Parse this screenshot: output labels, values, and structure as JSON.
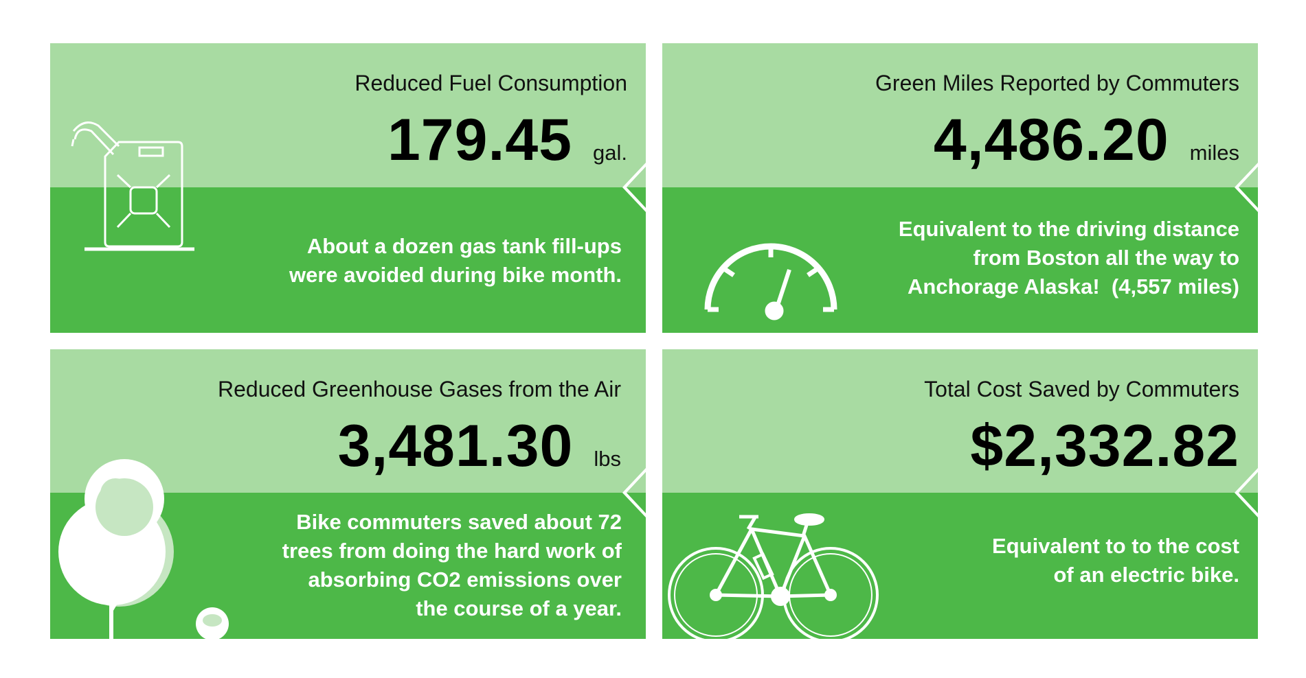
{
  "panels": [
    {
      "title": "Reduced Fuel Consumption",
      "value": "179.45",
      "unit": "gal.",
      "description": [
        "About a dozen gas tank fill-ups",
        "were avoided during bike month."
      ]
    },
    {
      "title": "Green Miles Reported by Commuters",
      "value": "4,486.20",
      "unit": "miles",
      "description": [
        "Equivalent to the driving distance",
        "from Boston all the way to",
        "Anchorage Alaska!  (4,557 miles)"
      ]
    },
    {
      "title": "Reduced Greenhouse Gases from the Air",
      "value": "3,481.30",
      "unit": "lbs",
      "description": [
        "Bike commuters saved about 72",
        "trees from doing the hard work of",
        "absorbing CO2 emissions over",
        "the course of a year."
      ]
    },
    {
      "title": "Total Cost Saved by Commuters",
      "value": "$2,332.82",
      "description": [
        "Equivalent to to the cost",
        "of an electric bike."
      ]
    }
  ]
}
